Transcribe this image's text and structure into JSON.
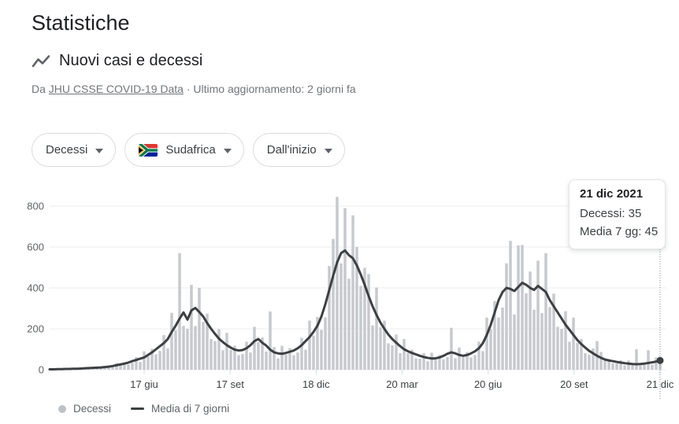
{
  "page": {
    "title": "Statistiche"
  },
  "card": {
    "title": "Nuovi casi e decessi",
    "source_prefix": "Da",
    "source_link": "JHU CSSE COVID-19 Data",
    "source_separator": "·",
    "source_updated": "Ultimo aggiornamento: 2 giorni fa"
  },
  "filters": [
    {
      "label": "Decessi"
    },
    {
      "label": "Sudafrica",
      "flag": "south-africa"
    },
    {
      "label": "Dall'inizio"
    }
  ],
  "tooltip": {
    "date": "21 dic 2021",
    "rows": [
      "Decessi: 35",
      "Media 7 gg: 45"
    ]
  },
  "legend": [
    {
      "label": "Decessi",
      "marker": "dot"
    },
    {
      "label": "Media di 7 giorni",
      "marker": "line"
    }
  ],
  "colors": {
    "bar": "#c6c9ce",
    "line": "#3c4043",
    "grid": "#ecedef",
    "y_label": "#5f6368",
    "x_label": "#3c4043",
    "tick": "#dadce0",
    "indicator": "#80868b",
    "legend_text": "#5f6368",
    "text": "#202124",
    "muted": "#70757a",
    "pill_border": "#dadce0"
  },
  "chart_data": {
    "type": "bar",
    "title": "Nuovi casi e decessi — Decessi, Sudafrica, Dall'inizio",
    "xlabel": "",
    "ylabel": "",
    "ylim": [
      0,
      860
    ],
    "yticks": [
      0,
      200,
      400,
      600,
      800
    ],
    "xticklabels": [
      "17 giu",
      "17 set",
      "18 dic",
      "20 mar",
      "20 giu",
      "20 set",
      "21 dic"
    ],
    "grid": true,
    "legend_position": "bottom",
    "series": [
      {
        "name": "Decessi",
        "type": "bar",
        "color": "#c6c9ce",
        "values": [
          2,
          3,
          2,
          5,
          4,
          5,
          4,
          4,
          8,
          5,
          12,
          8,
          12,
          8,
          10,
          20,
          13,
          33,
          23,
          36,
          26,
          34,
          62,
          38,
          90,
          65,
          102,
          75,
          92,
          169,
          105,
          278,
          194,
          570,
          214,
          200,
          415,
          214,
          400,
          234,
          274,
          150,
          140,
          198,
          95,
          180,
          97,
          118,
          71,
          77,
          137,
          84,
          210,
          135,
          158,
          89,
          285,
          111,
          56,
          117,
          74,
          106,
          71,
          84,
          156,
          98,
          240,
          167,
          258,
          195,
          256,
          507,
          640,
          845,
          520,
          790,
          445,
          755,
          600,
          410,
          498,
          468,
          217,
          402,
          207,
          240,
          129,
          120,
          172,
          81,
          150,
          81,
          98,
          56,
          54,
          81,
          41,
          83,
          50,
          72,
          51,
          62,
          205,
          56,
          108,
          61,
          86,
          60,
          72,
          137,
          91,
          255,
          198,
          336,
          255,
          304,
          520,
          630,
          270,
          608,
          610,
          374,
          480,
          293,
          533,
          277,
          570,
          306,
          372,
          210,
          200,
          286,
          137,
          255,
          131,
          150,
          81,
          74,
          104,
          140,
          87,
          45,
          54,
          32,
          30,
          46,
          22,
          45,
          25,
          100,
          21,
          24,
          95,
          25,
          60,
          35
        ]
      },
      {
        "name": "Media di 7 giorni",
        "type": "line",
        "color": "#3c4043",
        "values": [
          2,
          2,
          3,
          3,
          4,
          4,
          5,
          5,
          6,
          7,
          8,
          9,
          10,
          11,
          13,
          15,
          18,
          22,
          26,
          30,
          35,
          42,
          48,
          54,
          60,
          72,
          85,
          100,
          115,
          130,
          150,
          185,
          215,
          250,
          280,
          245,
          290,
          302,
          282,
          260,
          228,
          200,
          175,
          152,
          135,
          120,
          108,
          98,
          94,
          96,
          105,
          120,
          140,
          150,
          132,
          118,
          98,
          85,
          80,
          78,
          82,
          88,
          94,
          105,
          120,
          140,
          160,
          185,
          215,
          260,
          320,
          390,
          460,
          525,
          570,
          583,
          560,
          545,
          510,
          465,
          415,
          360,
          310,
          268,
          230,
          200,
          172,
          150,
          132,
          115,
          100,
          90,
          82,
          75,
          68,
          62,
          58,
          55,
          56,
          60,
          68,
          78,
          85,
          80,
          72,
          68,
          72,
          80,
          90,
          105,
          130,
          170,
          220,
          280,
          340,
          380,
          400,
          395,
          385,
          405,
          425,
          415,
          400,
          390,
          410,
          395,
          380,
          340,
          310,
          280,
          250,
          220,
          195,
          170,
          145,
          125,
          108,
          92,
          80,
          68,
          58,
          50,
          45,
          42,
          38,
          35,
          32,
          30,
          28,
          27,
          28,
          30,
          33,
          36,
          40,
          45
        ]
      }
    ],
    "highlight": {
      "date": "21 dic 2021",
      "decessi": 35,
      "media_7gg": 45
    }
  }
}
